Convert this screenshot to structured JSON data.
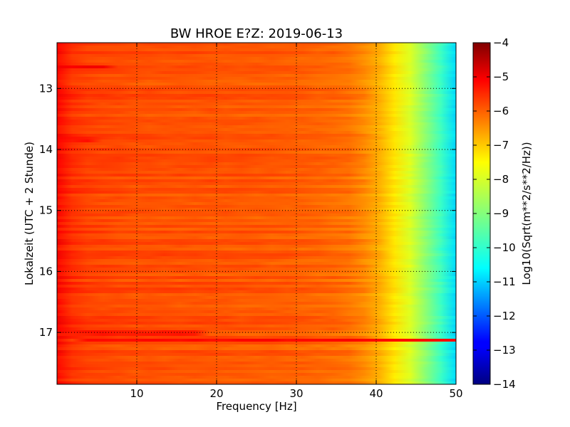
{
  "chart_data": {
    "type": "heatmap",
    "title": "BW HROE E?Z: 2019-06-13",
    "xlabel": "Frequency [Hz]",
    "ylabel": "Lokalzeit (UTC + 2 Stunde)",
    "xlim": [
      0,
      50
    ],
    "ylim": [
      12.25,
      17.85
    ],
    "y_inverted": true,
    "x_ticks": [
      10,
      20,
      30,
      40,
      50
    ],
    "x_tick_labels": [
      "10",
      "20",
      "30",
      "40",
      "50"
    ],
    "y_ticks": [
      13,
      14,
      15,
      16,
      17
    ],
    "y_tick_labels": [
      "13",
      "14",
      "15",
      "16",
      "17"
    ],
    "grid": true,
    "colormap": "jet",
    "colorbar": {
      "label": "Log10(Sqrt(m**2/s**2/Hz))",
      "range": [
        -14,
        -4
      ],
      "ticks": [
        -4,
        -5,
        -6,
        -7,
        -8,
        -9,
        -10,
        -11,
        -12,
        -13,
        -14
      ],
      "tick_labels": [
        "−4",
        "−5",
        "−6",
        "−7",
        "−8",
        "−9",
        "−10",
        "−11",
        "−12",
        "−13",
        "−14"
      ]
    },
    "frequency_profile": {
      "frequency_hz": [
        0,
        1,
        3,
        5,
        10,
        20,
        30,
        36,
        38,
        40,
        41,
        42,
        43,
        44,
        45,
        46,
        47,
        48,
        49,
        49.5,
        50
      ],
      "log10_amplitude": [
        -5.3,
        -5.6,
        -5.85,
        -5.9,
        -6.0,
        -6.05,
        -6.15,
        -6.3,
        -6.5,
        -6.85,
        -7.1,
        -7.4,
        -7.7,
        -8.0,
        -8.4,
        -8.8,
        -9.2,
        -9.6,
        -10.0,
        -10.4,
        -10.6
      ]
    },
    "strong_bands": [
      {
        "time": 12.65,
        "from_hz": 1,
        "to_hz": 6,
        "log10_amplitude": -5.2
      },
      {
        "time": 13.85,
        "from_hz": 1,
        "to_hz": 5,
        "log10_amplitude": -5.4
      },
      {
        "time": 17.0,
        "from_hz": 1,
        "to_hz": 18,
        "log10_amplitude": -5.5
      },
      {
        "time": 17.12,
        "from_hz": 2,
        "to_hz": 50,
        "log10_amplitude": -5.3
      }
    ]
  },
  "colors": {
    "jet_stops": [
      "#000080",
      "#0000ff",
      "#00ffff",
      "#ffff00",
      "#ff0000",
      "#800000"
    ],
    "grid": "#000000",
    "axes": "#000000"
  }
}
